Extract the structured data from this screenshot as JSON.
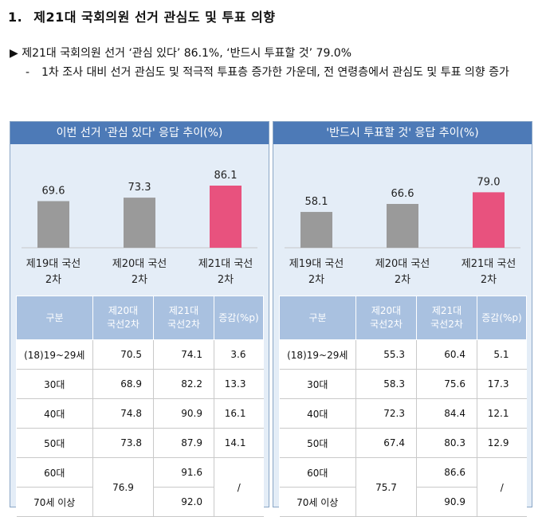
{
  "heading": {
    "number": "1.",
    "title": "제21대 국회의원 선거 관심도 및 투표 의향"
  },
  "summary": {
    "marker": "▶",
    "text": "제21대 국회의원 선거 ‘관심 있다’ 86.1%, ‘반드시 투표할 것’ 79.0%",
    "dash": "-",
    "detail": "1차 조사 대비 선거 관심도 및 적극적 투표층 증가한 가운데, 전 연령층에서 관심도 및 투표 의향 증가"
  },
  "colors": {
    "gray_bar": "#9a9a9a",
    "pink_bar": "#e8527e",
    "header_blue": "#4d7ab7",
    "table_header": "#a9c1e0"
  },
  "chart_data": [
    {
      "type": "bar",
      "title": "이번 선거 '관심 있다' 응답 추이(%)",
      "categories": [
        "제19대 국선 2차",
        "제20대 국선 2차",
        "제21대 국선 2차"
      ],
      "category_lines": [
        [
          "제19대 국선",
          "2차"
        ],
        [
          "제20대 국선",
          "2차"
        ],
        [
          "제21대 국선",
          "2차"
        ]
      ],
      "values": [
        69.6,
        73.3,
        86.1
      ],
      "labels": [
        "69.6",
        "73.3",
        "86.1"
      ],
      "highlight_index": 2,
      "ylim": [
        0,
        100
      ]
    },
    {
      "type": "bar",
      "title": "'반드시 투표할 것' 응답 추이(%)",
      "categories": [
        "제19대 국선 2차",
        "제20대 국선 2차",
        "제21대 국선 2차"
      ],
      "category_lines": [
        [
          "제19대 국선",
          "2차"
        ],
        [
          "제20대 국선",
          "2차"
        ],
        [
          "제21대 국선",
          "2차"
        ]
      ],
      "values": [
        58.1,
        66.6,
        79.0
      ],
      "labels": [
        "58.1",
        "66.6",
        "79.0"
      ],
      "highlight_index": 2,
      "ylim": [
        0,
        100
      ]
    }
  ],
  "tables": [
    {
      "headers": [
        "구분",
        [
          "제20대",
          "국선2차"
        ],
        [
          "제21대",
          "국선2차"
        ],
        "증감(%p)"
      ],
      "rows": [
        {
          "label": "(18)19~29세",
          "v20": "70.5",
          "v21": "74.1",
          "diff": "3.6"
        },
        {
          "label": "30대",
          "v20": "68.9",
          "v21": "82.2",
          "diff": "13.3"
        },
        {
          "label": "40대",
          "v20": "74.8",
          "v21": "90.9",
          "diff": "16.1"
        },
        {
          "label": "50대",
          "v20": "73.8",
          "v21": "87.9",
          "diff": "14.1"
        }
      ],
      "merged": {
        "labels": [
          "60대",
          "70세 이상"
        ],
        "v20": "76.9",
        "v21": [
          "91.6",
          "92.0"
        ],
        "diff": "/"
      }
    },
    {
      "headers": [
        "구분",
        [
          "제20대",
          "국선2차"
        ],
        [
          "제21대",
          "국선2차"
        ],
        "증감(%p)"
      ],
      "rows": [
        {
          "label": "(18)19~29세",
          "v20": "55.3",
          "v21": "60.4",
          "diff": "5.1"
        },
        {
          "label": "30대",
          "v20": "58.3",
          "v21": "75.6",
          "diff": "17.3"
        },
        {
          "label": "40대",
          "v20": "72.3",
          "v21": "84.4",
          "diff": "12.1"
        },
        {
          "label": "50대",
          "v20": "67.4",
          "v21": "80.3",
          "diff": "12.9"
        }
      ],
      "merged": {
        "labels": [
          "60대",
          "70세 이상"
        ],
        "v20": "75.7",
        "v21": [
          "86.6",
          "90.9"
        ],
        "diff": "/"
      }
    }
  ]
}
